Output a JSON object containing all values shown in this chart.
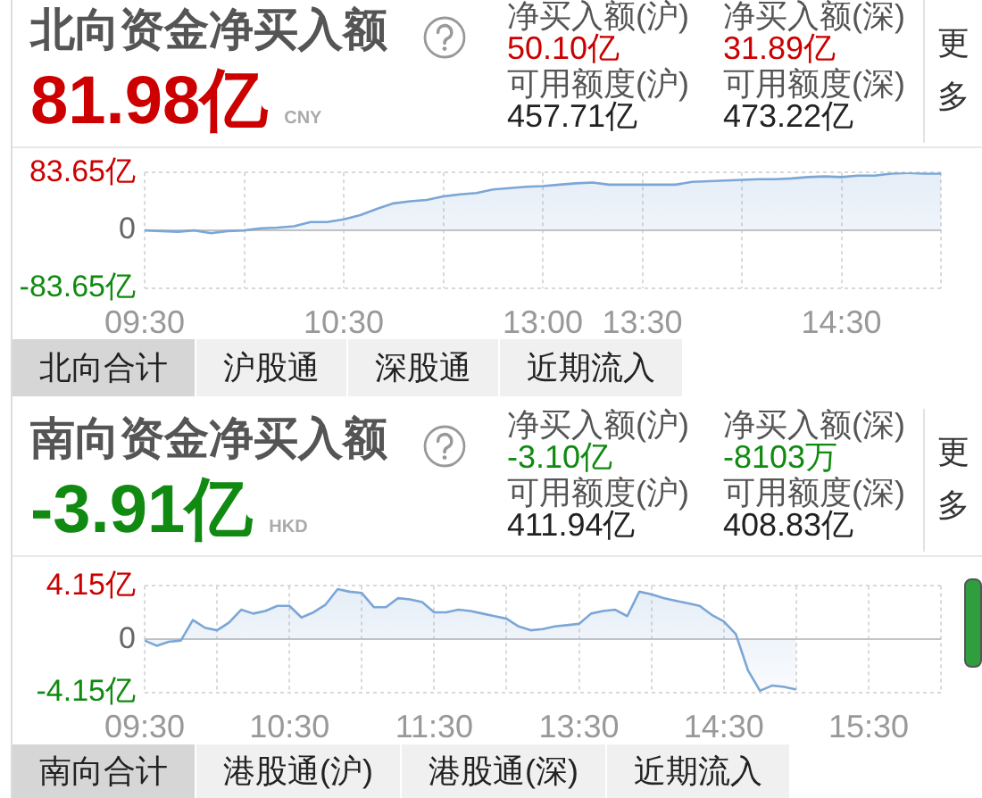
{
  "chart_data": [
    {
      "type": "other",
      "title": "北向资金净买入额",
      "annotations": [
        "81.98亿",
        "CNY",
        "净买入额(沪)",
        "50.10亿",
        "净买入额(深)",
        "31.89亿",
        "可用额度(沪)",
        "457.71亿",
        "可用额度(深)",
        "473.22亿",
        "更多"
      ]
    },
    {
      "type": "area",
      "color": "#7ba6d6",
      "categories": [
        "09:30",
        null,
        null,
        null,
        null,
        null,
        null,
        null,
        null,
        null,
        null,
        null,
        "10:30",
        null,
        null,
        null,
        null,
        null,
        null,
        null,
        null,
        null,
        null,
        null,
        "13:00",
        null,
        null,
        null,
        null,
        null,
        "13:30",
        null,
        null,
        null,
        null,
        null,
        null,
        null,
        null,
        null,
        null,
        null,
        "14:30",
        null,
        null,
        null,
        null,
        null,
        null
      ],
      "values": [
        0,
        -1,
        -2,
        0,
        -4,
        -1,
        0,
        3,
        4,
        6,
        12,
        12,
        16,
        22,
        31,
        39,
        42,
        44,
        49,
        52,
        54,
        59,
        61,
        63,
        64,
        66,
        68,
        69,
        66,
        66,
        66,
        66,
        66,
        70,
        71,
        72,
        73,
        74,
        74,
        75,
        77,
        78,
        77,
        79,
        79,
        82,
        83,
        82,
        82
      ],
      "ylim": [
        -83.65,
        83.65
      ],
      "yticks": [
        {
          "value": -83.65,
          "label": "-83.65亿"
        },
        0,
        {
          "value": 83.65,
          "label": "83.65亿"
        }
      ],
      "grid": true
    },
    {
      "type": "other",
      "annotations": [
        "北向合计",
        "沪股通",
        "深股通",
        "近期流入"
      ]
    },
    {
      "type": "other",
      "title": "南向资金净买入额",
      "annotations": [
        "-3.91亿",
        "HKD",
        "净买入额(沪)",
        "-3.10亿",
        "净买入额(深)",
        "-8103万",
        "可用额度(沪)",
        "411.94亿",
        "可用额度(深)",
        "408.83亿",
        "更多"
      ]
    },
    {
      "type": "area",
      "color": "#7ba6d6",
      "categories": [
        "09:30",
        null,
        null,
        null,
        null,
        null,
        null,
        null,
        null,
        null,
        null,
        null,
        "10:30",
        null,
        null,
        null,
        null,
        null,
        null,
        null,
        null,
        null,
        null,
        null,
        "11:30",
        null,
        null,
        null,
        null,
        null,
        null,
        null,
        null,
        null,
        null,
        null,
        "13:30",
        null,
        null,
        null,
        null,
        null,
        null,
        null,
        null,
        null,
        null,
        null,
        "14:30",
        null,
        null,
        null,
        null,
        null,
        null,
        null,
        null,
        null,
        null,
        null,
        "15:30",
        null,
        null,
        null,
        null,
        null,
        null
      ],
      "values": [
        -0.1,
        -0.5,
        -0.2,
        -0.1,
        1.5,
        0.9,
        0.7,
        1.3,
        2.3,
        2,
        2.2,
        2.6,
        2.6,
        1.7,
        2.1,
        2.7,
        3.9,
        3.7,
        3.6,
        2.5,
        2.5,
        3.2,
        3.1,
        2.9,
        2.1,
        2.1,
        2.3,
        2.2,
        2,
        1.8,
        1.6,
        1,
        0.7,
        0.8,
        1,
        1.1,
        1.2,
        2,
        2.2,
        2.3,
        1.8,
        3.7,
        3.5,
        3.2,
        3,
        2.8,
        2.6,
        1.9,
        1.4,
        0.4,
        -2.4,
        -4,
        -3.6,
        -3.7,
        -3.9,
        null,
        null,
        null,
        null,
        null,
        null,
        null,
        null,
        null,
        null,
        null,
        null
      ],
      "ylim": [
        -4.15,
        4.15
      ],
      "yticks": [
        {
          "value": -4.15,
          "label": "-4.15亿"
        },
        0,
        {
          "value": 4.15,
          "label": "4.15亿"
        }
      ],
      "grid": true
    },
    {
      "type": "other",
      "annotations": [
        "南向合计",
        "港股通(沪)",
        "港股通(深)",
        "近期流入"
      ]
    }
  ]
}
